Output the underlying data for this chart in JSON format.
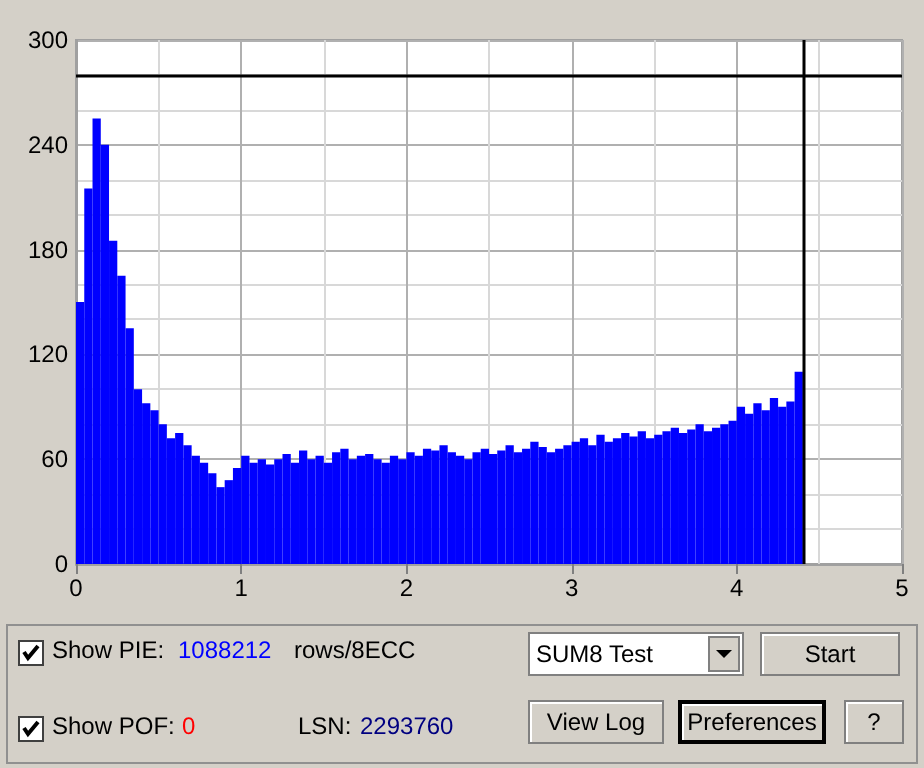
{
  "chart_data": {
    "type": "bar",
    "x": [
      0.025,
      0.075,
      0.125,
      0.175,
      0.225,
      0.275,
      0.325,
      0.375,
      0.425,
      0.475,
      0.525,
      0.575,
      0.625,
      0.675,
      0.725,
      0.775,
      0.825,
      0.875,
      0.925,
      0.975,
      1.025,
      1.075,
      1.125,
      1.175,
      1.225,
      1.275,
      1.325,
      1.375,
      1.425,
      1.475,
      1.525,
      1.575,
      1.625,
      1.675,
      1.725,
      1.775,
      1.825,
      1.875,
      1.925,
      1.975,
      2.025,
      2.075,
      2.125,
      2.175,
      2.225,
      2.275,
      2.325,
      2.375,
      2.425,
      2.475,
      2.525,
      2.575,
      2.625,
      2.675,
      2.725,
      2.775,
      2.825,
      2.875,
      2.925,
      2.975,
      3.025,
      3.075,
      3.125,
      3.175,
      3.225,
      3.275,
      3.325,
      3.375,
      3.425,
      3.475,
      3.525,
      3.575,
      3.625,
      3.675,
      3.725,
      3.775,
      3.825,
      3.875,
      3.925,
      3.975,
      4.025,
      4.075,
      4.125,
      4.175,
      4.225,
      4.275,
      4.325,
      4.375
    ],
    "values": [
      150,
      215,
      255,
      240,
      185,
      165,
      135,
      100,
      92,
      88,
      80,
      72,
      75,
      68,
      62,
      58,
      52,
      44,
      48,
      55,
      62,
      58,
      60,
      57,
      60,
      63,
      58,
      65,
      60,
      62,
      58,
      64,
      66,
      60,
      62,
      63,
      60,
      58,
      62,
      60,
      64,
      62,
      66,
      65,
      68,
      64,
      62,
      60,
      64,
      66,
      63,
      65,
      68,
      64,
      66,
      70,
      67,
      64,
      66,
      68,
      70,
      72,
      68,
      74,
      70,
      72,
      75,
      73,
      76,
      72,
      74,
      76,
      78,
      75,
      77,
      80,
      76,
      78,
      80,
      82,
      90,
      86,
      92,
      88,
      95,
      90,
      93,
      110
    ],
    "color": "#0000ff",
    "xlim": [
      0,
      5
    ],
    "xticks": [
      0,
      1,
      2,
      3,
      4,
      5
    ],
    "ylim": [
      0,
      300
    ],
    "yticks": [
      0,
      60,
      120,
      180,
      240,
      300
    ],
    "grid": true,
    "ref_lines": [
      {
        "axis": "y",
        "value": 280,
        "color": "#000000"
      },
      {
        "axis": "x",
        "value": 4.4,
        "color": "#000000"
      }
    ],
    "annotations": [
      "Show PIE:",
      "1088212",
      "rows/8ECC",
      "Show POF:",
      "0",
      "LSN:",
      "2293760",
      "SUM8 Test",
      "Start",
      "View Log",
      "Preferences",
      "?"
    ]
  }
}
